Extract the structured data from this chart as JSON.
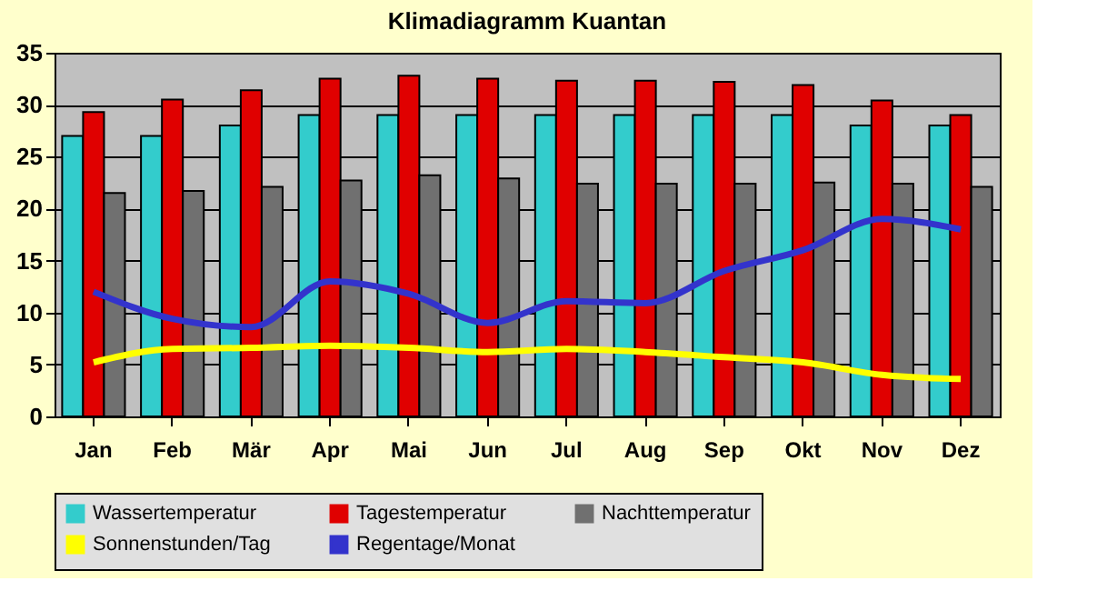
{
  "chart_data": {
    "type": "bar",
    "title": "Klimadiagramm Kuantan",
    "categories": [
      "Jan",
      "Feb",
      "Mär",
      "Apr",
      "Mai",
      "Jun",
      "Jul",
      "Aug",
      "Sep",
      "Okt",
      "Nov",
      "Dez"
    ],
    "series": [
      {
        "name": "Wassertemperatur",
        "color": "#33cccc",
        "values": [
          27,
          27,
          28,
          29,
          29,
          29,
          29,
          29,
          29,
          29,
          28,
          28
        ]
      },
      {
        "name": "Tagestemperatur",
        "color": "#e00000",
        "values": [
          29.3,
          30.5,
          31.4,
          32.5,
          32.8,
          32.5,
          32.3,
          32.3,
          32.2,
          31.9,
          30.4,
          29
        ]
      },
      {
        "name": "Nachttemperatur",
        "color": "#707070",
        "values": [
          21.5,
          21.7,
          22.1,
          22.7,
          23.2,
          22.9,
          22.4,
          22.4,
          22.4,
          22.5,
          22.4,
          22.1
        ]
      },
      {
        "name": "Sonnenstunden/Tag",
        "type": "line",
        "color": "#ffff00",
        "values": [
          5.2,
          6.5,
          6.6,
          6.8,
          6.6,
          6.2,
          6.5,
          6.2,
          5.7,
          5.2,
          4.0,
          3.6
        ]
      },
      {
        "name": "Regentage/Monat",
        "type": "line",
        "color": "#3333cc",
        "values": [
          12,
          9.4,
          8.6,
          13,
          11.8,
          9,
          11.1,
          10.9,
          14,
          16,
          19,
          18
        ]
      }
    ],
    "ylim": [
      0,
      35
    ],
    "yticks": [
      0,
      5,
      10,
      15,
      20,
      25,
      30,
      35
    ],
    "grid": "y",
    "legend": "bottom"
  }
}
